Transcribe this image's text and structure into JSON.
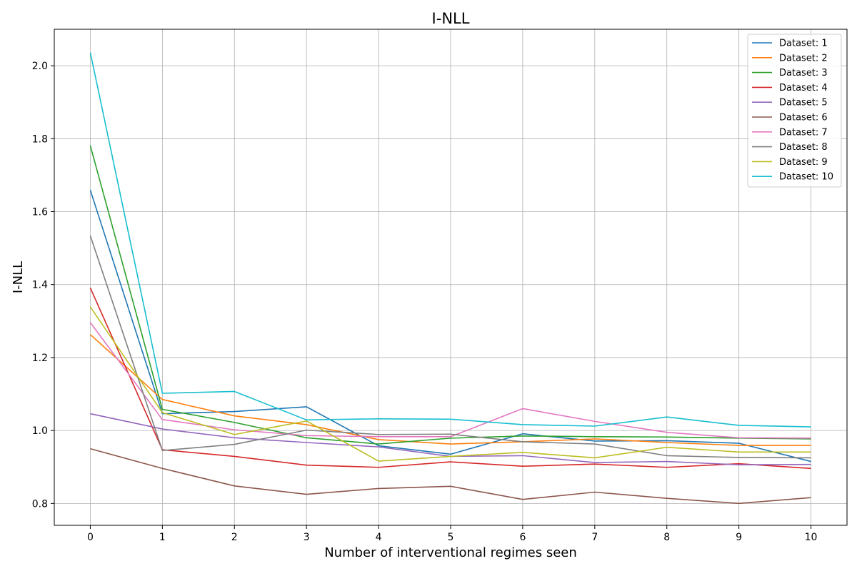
{
  "chart_data": {
    "type": "line",
    "title": "I-NLL",
    "xlabel": "Number of interventional regimes seen",
    "ylabel": "I-NLL",
    "x": [
      0,
      1,
      2,
      3,
      4,
      5,
      6,
      7,
      8,
      9,
      10
    ],
    "xlim": [
      -0.5,
      10.5
    ],
    "ylim": [
      0.74,
      2.1
    ],
    "xticks": [
      "0",
      "1",
      "2",
      "3",
      "4",
      "5",
      "6",
      "7",
      "8",
      "9",
      "10"
    ],
    "yticks": [
      "0.8",
      "1.0",
      "1.2",
      "1.4",
      "1.6",
      "1.8",
      "2.0"
    ],
    "grid": true,
    "legend_position": "top-right",
    "series": [
      {
        "name": "Dataset: 1",
        "color": "#1f77b4",
        "values": [
          1.659,
          1.046,
          1.052,
          1.065,
          0.958,
          0.935,
          0.991,
          0.971,
          0.972,
          0.965,
          0.915
        ]
      },
      {
        "name": "Dataset: 2",
        "color": "#ff7f0e",
        "values": [
          1.263,
          1.085,
          1.04,
          1.016,
          0.975,
          0.963,
          0.969,
          0.977,
          0.967,
          0.959,
          0.959
        ]
      },
      {
        "name": "Dataset: 3",
        "color": "#2ca02c",
        "values": [
          1.781,
          1.058,
          1.022,
          0.98,
          0.963,
          0.979,
          0.985,
          0.983,
          0.982,
          0.979,
          0.977
        ]
      },
      {
        "name": "Dataset: 4",
        "color": "#d62728",
        "values": [
          1.391,
          0.947,
          0.929,
          0.905,
          0.899,
          0.914,
          0.902,
          0.908,
          0.899,
          0.909,
          0.896
        ]
      },
      {
        "name": "Dataset: 5",
        "color": "#9467bd",
        "values": [
          1.046,
          1.004,
          0.98,
          0.967,
          0.955,
          0.929,
          0.931,
          0.912,
          0.915,
          0.906,
          0.907
        ]
      },
      {
        "name": "Dataset: 6",
        "color": "#8c564b",
        "values": [
          0.95,
          0.896,
          0.848,
          0.825,
          0.841,
          0.847,
          0.811,
          0.831,
          0.814,
          0.8,
          0.816
        ]
      },
      {
        "name": "Dataset: 7",
        "color": "#e377c2",
        "values": [
          1.296,
          1.03,
          1.002,
          0.986,
          0.983,
          0.983,
          1.06,
          1.025,
          0.995,
          0.98,
          0.979
        ]
      },
      {
        "name": "Dataset: 8",
        "color": "#7f7f7f",
        "values": [
          1.534,
          0.945,
          0.962,
          1.001,
          0.989,
          0.99,
          0.969,
          0.963,
          0.931,
          0.926,
          0.925
        ]
      },
      {
        "name": "Dataset: 9",
        "color": "#bcbd22",
        "values": [
          1.339,
          1.049,
          0.989,
          1.026,
          0.916,
          0.929,
          0.94,
          0.925,
          0.954,
          0.941,
          0.941
        ]
      },
      {
        "name": "Dataset: 10",
        "color": "#17becf",
        "values": [
          2.036,
          1.102,
          1.107,
          1.029,
          1.032,
          1.031,
          1.016,
          1.012,
          1.037,
          1.014,
          1.01
        ]
      }
    ]
  }
}
